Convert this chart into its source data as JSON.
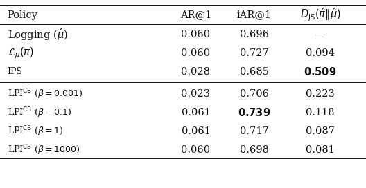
{
  "rows": [
    {
      "policy": "Logging ($\\hat{\\mu}$)",
      "ar": "0.060",
      "iar": "0.696",
      "djs": "—",
      "iar_bold": false,
      "djs_bold": false,
      "style": "normal"
    },
    {
      "policy": "$\\mathcal{L}_{\\mu}(\\pi)$",
      "ar": "0.060",
      "iar": "0.727",
      "djs": "0.094",
      "iar_bold": false,
      "djs_bold": false,
      "style": "normal"
    },
    {
      "policy": "IPS",
      "ar": "0.028",
      "iar": "0.685",
      "djs": "0.509",
      "iar_bold": false,
      "djs_bold": true,
      "style": "smallcaps"
    },
    {
      "policy": "LPI$^{\\mathrm{CB}}$ ($\\beta = 0.001$)",
      "ar": "0.023",
      "iar": "0.706",
      "djs": "0.223",
      "iar_bold": false,
      "djs_bold": false,
      "style": "smallcaps"
    },
    {
      "policy": "LPI$^{\\mathrm{CB}}$ ($\\beta = 0.1$)",
      "ar": "0.061",
      "iar": "0.739",
      "djs": "0.118",
      "iar_bold": true,
      "djs_bold": false,
      "style": "smallcaps"
    },
    {
      "policy": "LPI$^{\\mathrm{CB}}$ ($\\beta = 1$)",
      "ar": "0.061",
      "iar": "0.717",
      "djs": "0.087",
      "iar_bold": false,
      "djs_bold": false,
      "style": "smallcaps"
    },
    {
      "policy": "LPI$^{\\mathrm{CB}}$ ($\\beta = 1000$)",
      "ar": "0.060",
      "iar": "0.698",
      "djs": "0.081",
      "iar_bold": false,
      "djs_bold": false,
      "style": "smallcaps"
    }
  ],
  "bg_color": "#ffffff",
  "text_color": "#111111",
  "line_color": "#111111",
  "figsize": [
    5.28,
    2.72
  ],
  "dpi": 100
}
